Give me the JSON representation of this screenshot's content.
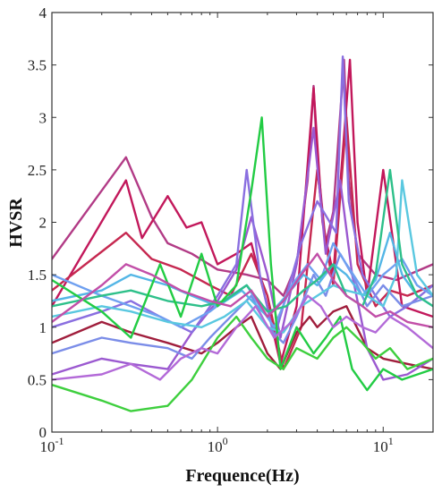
{
  "chart_data": {
    "type": "line",
    "title": "",
    "xlabel": "Frequence(Hz)",
    "ylabel": "HVSR",
    "xscale": "log",
    "xlim": [
      0.1,
      20
    ],
    "ylim": [
      0,
      4
    ],
    "grid": false,
    "legend": "none",
    "x_ticks": [
      {
        "value": 0.1,
        "base": "10",
        "exp": "-1"
      },
      {
        "value": 1,
        "base": "10",
        "exp": "0"
      },
      {
        "value": 10,
        "base": "10",
        "exp": "1"
      }
    ],
    "y_ticks": [
      "0",
      "0.5",
      "1",
      "1.5",
      "2",
      "2.5",
      "3",
      "3.5",
      "4"
    ],
    "series": [
      {
        "color": "#b23b86",
        "x": [
          0.1,
          0.28,
          0.4,
          0.5,
          0.7,
          1.0,
          1.5,
          2.0,
          2.5,
          3.0,
          3.5,
          3.8,
          4.0,
          4.5,
          5.0,
          5.8,
          6.2,
          7,
          9,
          12,
          20
        ],
        "y": [
          1.65,
          2.62,
          2.05,
          1.8,
          1.7,
          1.55,
          1.5,
          1.45,
          1.3,
          1.6,
          2.4,
          3.3,
          2.6,
          1.8,
          2.1,
          3.55,
          2.4,
          1.7,
          1.5,
          1.45,
          1.6
        ]
      },
      {
        "color": "#c2185b",
        "x": [
          0.1,
          0.28,
          0.35,
          0.5,
          0.65,
          0.8,
          1.0,
          1.3,
          1.6,
          2.0,
          2.4,
          3.0,
          3.8,
          4.3,
          5.0,
          6.3,
          7.0,
          8,
          10,
          13,
          20
        ],
        "y": [
          1.2,
          2.4,
          1.85,
          2.25,
          1.95,
          2.0,
          1.6,
          1.7,
          1.8,
          1.2,
          0.65,
          1.2,
          3.28,
          2.0,
          1.5,
          3.55,
          2.0,
          1.3,
          2.5,
          1.2,
          1.1
        ]
      },
      {
        "color": "#c62850",
        "x": [
          0.1,
          0.28,
          0.4,
          0.6,
          0.9,
          1.2,
          1.6,
          2.0,
          2.5,
          3.2,
          4.0,
          4.5,
          5.0,
          6.0,
          7.0,
          9,
          11,
          14,
          20
        ],
        "y": [
          1.35,
          1.9,
          1.65,
          1.55,
          1.4,
          1.3,
          1.7,
          1.3,
          0.6,
          1.0,
          2.5,
          1.8,
          1.4,
          3.0,
          1.6,
          1.2,
          1.35,
          1.3,
          1.4
        ]
      },
      {
        "color": "#a01e3c",
        "x": [
          0.1,
          0.2,
          0.3,
          0.5,
          0.8,
          1.0,
          1.3,
          1.6,
          2.0,
          2.4,
          3.0,
          3.6,
          4.0,
          5.0,
          6.0,
          8.0,
          10,
          14,
          20
        ],
        "y": [
          0.85,
          1.05,
          0.95,
          0.85,
          0.75,
          0.85,
          1.0,
          1.1,
          0.75,
          0.6,
          0.95,
          1.1,
          1.0,
          1.15,
          1.2,
          0.8,
          0.7,
          0.65,
          0.6
        ]
      },
      {
        "color": "#9b59d0",
        "x": [
          0.1,
          0.2,
          0.3,
          0.5,
          0.7,
          1.0,
          1.3,
          1.6,
          2.0,
          2.4,
          3.0,
          3.8,
          4.5,
          5.5,
          6.5,
          8,
          10,
          14,
          20
        ],
        "y": [
          0.55,
          0.7,
          0.65,
          0.6,
          0.95,
          1.25,
          1.55,
          2.05,
          1.5,
          0.9,
          1.6,
          2.9,
          1.7,
          2.4,
          1.5,
          0.8,
          0.5,
          0.55,
          0.7
        ]
      },
      {
        "color": "#8a6fe0",
        "x": [
          0.1,
          0.2,
          0.3,
          0.45,
          0.7,
          1.0,
          1.3,
          1.5,
          1.8,
          2.2,
          2.6,
          3.2,
          4.0,
          5.2,
          5.7,
          6.2,
          7.5,
          9,
          11,
          14,
          20
        ],
        "y": [
          1.0,
          1.15,
          1.25,
          1.1,
          0.95,
          1.3,
          1.6,
          2.5,
          1.5,
          0.9,
          1.3,
          1.8,
          2.2,
          1.9,
          3.58,
          2.2,
          1.5,
          1.3,
          1.1,
          1.2,
          1.4
        ]
      },
      {
        "color": "#7b8de8",
        "x": [
          0.1,
          0.2,
          0.3,
          0.5,
          0.7,
          0.9,
          1.2,
          1.6,
          2.0,
          2.5,
          3.0,
          3.8,
          4.5,
          5.5,
          6.5,
          8,
          10,
          13,
          20
        ],
        "y": [
          0.75,
          0.9,
          0.85,
          0.8,
          0.7,
          0.9,
          1.1,
          1.3,
          1.0,
          0.85,
          1.1,
          1.5,
          1.3,
          1.7,
          1.5,
          1.2,
          1.4,
          1.2,
          1.3
        ]
      },
      {
        "color": "#6fa0f0",
        "x": [
          0.1,
          0.2,
          0.3,
          0.45,
          0.6,
          0.9,
          1.2,
          1.5,
          1.8,
          2.2,
          2.8,
          3.5,
          4.2,
          5.0,
          6.0,
          8,
          10,
          13,
          16,
          20
        ],
        "y": [
          1.5,
          1.3,
          1.2,
          1.1,
          1.0,
          1.15,
          1.3,
          1.4,
          1.2,
          1.0,
          1.4,
          1.6,
          1.45,
          1.8,
          1.6,
          1.3,
          1.5,
          1.65,
          1.4,
          1.3
        ]
      },
      {
        "color": "#54b6e6",
        "x": [
          0.1,
          0.2,
          0.3,
          0.5,
          0.7,
          1.0,
          1.4,
          2.0,
          2.6,
          3.3,
          4.0,
          5.0,
          6.0,
          7.5,
          9,
          11,
          13,
          16,
          20
        ],
        "y": [
          1.25,
          1.35,
          1.5,
          1.4,
          1.3,
          1.2,
          1.35,
          1.1,
          1.3,
          1.5,
          1.4,
          1.6,
          1.5,
          1.3,
          1.45,
          1.9,
          1.5,
          1.3,
          1.2
        ]
      },
      {
        "color": "#5ac8e0",
        "x": [
          0.1,
          0.2,
          0.3,
          0.5,
          0.8,
          1.1,
          1.5,
          2.0,
          2.5,
          3.2,
          4.0,
          5.0,
          6.0,
          8,
          10,
          12,
          13,
          16,
          20
        ],
        "y": [
          1.1,
          1.2,
          1.15,
          1.05,
          1.0,
          1.1,
          1.25,
          1.0,
          0.95,
          1.2,
          1.3,
          1.4,
          1.35,
          1.3,
          1.2,
          1.5,
          2.4,
          1.5,
          1.3
        ]
      },
      {
        "color": "#2ec08a",
        "x": [
          0.1,
          0.2,
          0.3,
          0.5,
          0.8,
          1.1,
          1.5,
          2.0,
          2.6,
          3.3,
          4.0,
          5.0,
          6.0,
          7.5,
          9,
          11,
          13,
          16,
          20
        ],
        "y": [
          1.2,
          1.3,
          1.35,
          1.25,
          1.2,
          1.25,
          1.4,
          1.15,
          1.2,
          1.35,
          1.45,
          1.6,
          1.3,
          1.2,
          1.5,
          2.5,
          1.6,
          1.3,
          1.2
        ]
      },
      {
        "color": "#22cc44",
        "x": [
          0.1,
          0.2,
          0.3,
          0.45,
          0.6,
          0.8,
          1.0,
          1.3,
          1.6,
          1.85,
          2.1,
          2.4,
          3.0,
          3.8,
          4.5,
          5.5,
          6.5,
          8,
          10,
          13,
          20
        ],
        "y": [
          1.45,
          1.15,
          0.9,
          1.6,
          1.1,
          1.7,
          1.2,
          1.4,
          2.3,
          3.0,
          1.6,
          0.6,
          1.0,
          0.75,
          0.9,
          1.1,
          0.6,
          0.4,
          0.6,
          0.5,
          0.6
        ]
      },
      {
        "color": "#3ecf3e",
        "x": [
          0.1,
          0.2,
          0.3,
          0.5,
          0.7,
          1.0,
          1.3,
          1.6,
          2.0,
          2.5,
          3.0,
          4.0,
          5.0,
          6.0,
          7.5,
          9,
          11,
          14,
          20
        ],
        "y": [
          0.45,
          0.3,
          0.2,
          0.25,
          0.5,
          0.9,
          1.1,
          0.9,
          0.7,
          0.6,
          0.8,
          0.7,
          0.9,
          1.0,
          0.85,
          0.7,
          0.8,
          0.6,
          0.7
        ]
      },
      {
        "color": "#b36ad8",
        "x": [
          0.1,
          0.2,
          0.3,
          0.45,
          0.6,
          0.8,
          1.0,
          1.3,
          1.7,
          2.2,
          2.8,
          3.5,
          4.2,
          5.0,
          6.0,
          7.5,
          9,
          11,
          14,
          20
        ],
        "y": [
          0.5,
          0.55,
          0.65,
          0.5,
          0.7,
          0.8,
          0.75,
          1.0,
          1.2,
          0.9,
          1.05,
          1.3,
          1.2,
          1.0,
          1.1,
          1.0,
          0.95,
          1.1,
          1.0,
          0.8
        ]
      },
      {
        "color": "#c24fa8",
        "x": [
          0.1,
          0.2,
          0.28,
          0.4,
          0.6,
          0.9,
          1.2,
          1.6,
          2.0,
          2.5,
          3.2,
          4.0,
          5.0,
          6.0,
          7.5,
          9,
          11,
          14,
          20
        ],
        "y": [
          1.05,
          1.4,
          1.6,
          1.5,
          1.35,
          1.25,
          1.2,
          1.35,
          1.1,
          1.25,
          1.5,
          1.7,
          1.45,
          1.3,
          1.2,
          1.1,
          1.15,
          1.05,
          1.0
        ]
      }
    ]
  }
}
